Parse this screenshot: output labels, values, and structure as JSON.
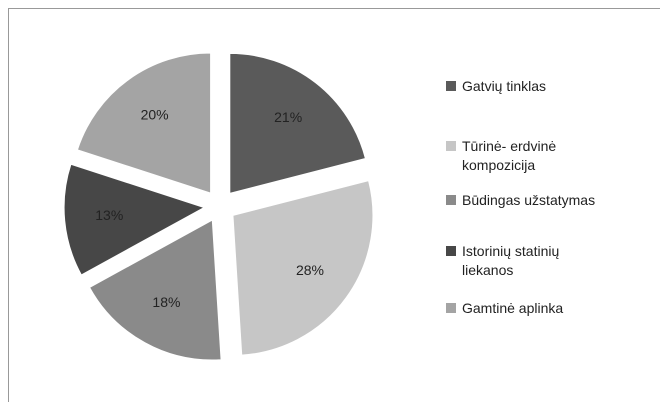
{
  "chart_data": {
    "type": "pie",
    "categories": [
      "Gatvių tinklas",
      "Tūrinė- erdvinė kompozicija",
      "Būdingas užstatymas",
      "Istorinių statinių liekanos",
      "Gamtinė aplinka"
    ],
    "values": [
      21,
      28,
      18,
      13,
      20
    ],
    "value_labels": [
      "21%",
      "28%",
      "18%",
      "13%",
      "20%"
    ],
    "colors": [
      "#5a5a5a",
      "#c6c6c6",
      "#8a8a8a",
      "#474747",
      "#a4a4a4"
    ],
    "legend": "right"
  }
}
